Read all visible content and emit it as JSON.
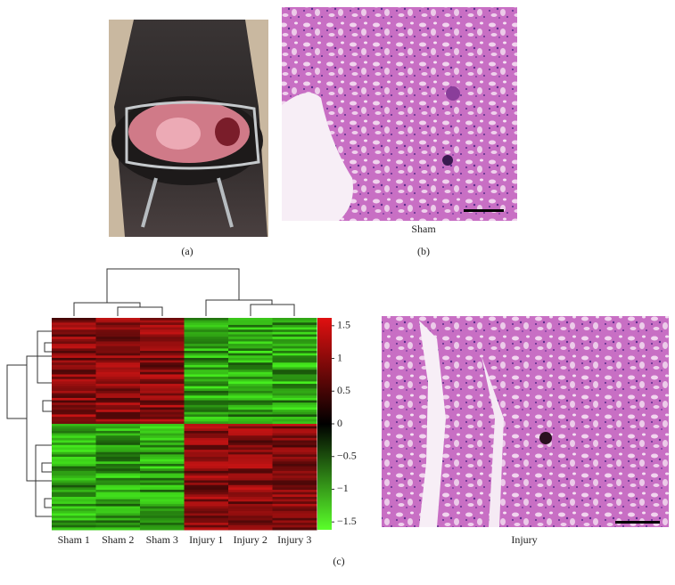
{
  "panels": {
    "a": {
      "label": "(a)"
    },
    "b": {
      "label": "(b)",
      "caption": "Sham"
    },
    "c": {
      "label": "(c)",
      "caption": "Injury"
    }
  },
  "heatmap": {
    "columns": [
      "Sham 1",
      "Sham 2",
      "Sham 3",
      "Injury 1",
      "Injury 2",
      "Injury 3"
    ],
    "colorbar": {
      "lim": [
        -1.62,
        1.62
      ],
      "ticks": [
        1.5,
        1,
        0.5,
        0,
        {
          "value": -0.5,
          "label": "−0.5"
        },
        {
          "value": -1,
          "label": "−1"
        },
        {
          "value": -1.5,
          "label": "−1.5"
        }
      ]
    }
  }
}
